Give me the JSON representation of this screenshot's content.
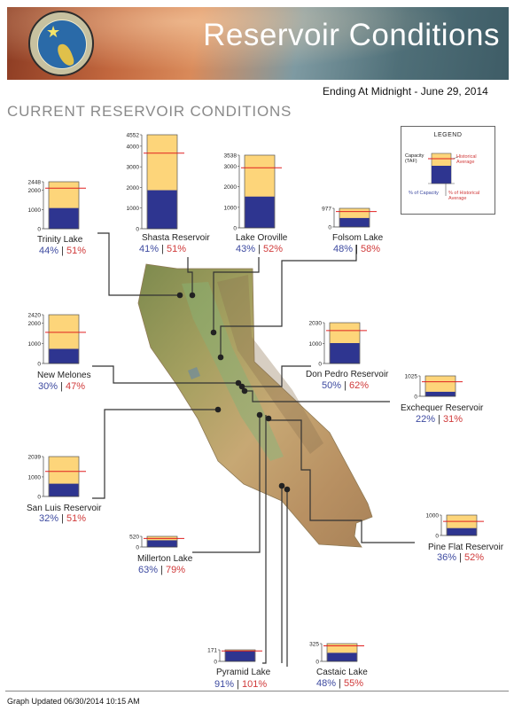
{
  "header": {
    "title": "Reservoir Conditions"
  },
  "ending_text": "Ending At Midnight - June 29, 2014",
  "section_title": "CURRENT RESERVOIR CONDITIONS",
  "legend": {
    "title": "LEGEND",
    "capacity_label": "Capacity (TAF)",
    "historical_label": "Historical Average",
    "pct_capacity_label": "% of Capacity",
    "pct_hist_label": "% of Historical Average"
  },
  "colors": {
    "storage": "#2e3590",
    "capacity": "#fdd57a",
    "historical_line": "#e02020"
  },
  "footer": "Graph Updated 06/30/2014 10:15 AM",
  "reservoirs": [
    {
      "name": "Trinity Lake",
      "pct_capacity": "44%",
      "pct_historical": "51%",
      "capacity": 2448,
      "storage": 1077,
      "historical": 2112,
      "ticks": [
        "2448",
        "2000",
        "1000",
        "0"
      ]
    },
    {
      "name": "Shasta Reservoir",
      "pct_capacity": "41%",
      "pct_historical": "51%",
      "capacity": 4552,
      "storage": 1866,
      "historical": 3659,
      "ticks": [
        "4552",
        "4000",
        "3000",
        "2000",
        "1000",
        "0"
      ]
    },
    {
      "name": "Lake Oroville",
      "pct_capacity": "43%",
      "pct_historical": "52%",
      "capacity": 3538,
      "storage": 1521,
      "historical": 2925,
      "ticks": [
        "3538",
        "3000",
        "2000",
        "1000",
        "0"
      ]
    },
    {
      "name": "Folsom Lake",
      "pct_capacity": "48%",
      "pct_historical": "58%",
      "capacity": 977,
      "storage": 469,
      "historical": 809,
      "ticks": [
        "977",
        "0"
      ]
    },
    {
      "name": "New Melones",
      "pct_capacity": "30%",
      "pct_historical": "47%",
      "capacity": 2420,
      "storage": 726,
      "historical": 1545,
      "ticks": [
        "2420",
        "2000",
        "1000",
        "0"
      ]
    },
    {
      "name": "Don Pedro Reservoir",
      "pct_capacity": "50%",
      "pct_historical": "62%",
      "capacity": 2030,
      "storage": 1015,
      "historical": 1637,
      "ticks": [
        "2030",
        "1000",
        "0"
      ]
    },
    {
      "name": "Exchequer Reservoir",
      "pct_capacity": "22%",
      "pct_historical": "31%",
      "capacity": 1025,
      "storage": 226,
      "historical": 729,
      "ticks": [
        "1025",
        "0"
      ]
    },
    {
      "name": "San Luis Reservoir",
      "pct_capacity": "32%",
      "pct_historical": "51%",
      "capacity": 2039,
      "storage": 652,
      "historical": 1279,
      "ticks": [
        "2039",
        "1000",
        "0"
      ]
    },
    {
      "name": "Millerton Lake",
      "pct_capacity": "63%",
      "pct_historical": "79%",
      "capacity": 520,
      "storage": 328,
      "historical": 415,
      "ticks": [
        "520",
        "0"
      ]
    },
    {
      "name": "Pine Flat Reservoir",
      "pct_capacity": "36%",
      "pct_historical": "52%",
      "capacity": 1000,
      "storage": 360,
      "historical": 692,
      "ticks": [
        "1000",
        "0"
      ]
    },
    {
      "name": "Pyramid Lake",
      "pct_capacity": "91%",
      "pct_historical": "101%",
      "capacity": 171,
      "storage": 156,
      "historical": 154,
      "ticks": [
        "171",
        "0"
      ]
    },
    {
      "name": "Castaic Lake",
      "pct_capacity": "48%",
      "pct_historical": "55%",
      "capacity": 325,
      "storage": 156,
      "historical": 284,
      "ticks": [
        "325",
        "0"
      ]
    }
  ]
}
